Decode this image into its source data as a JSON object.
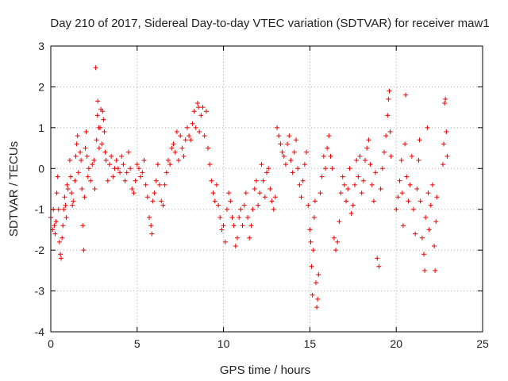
{
  "chart_data": {
    "type": "scatter",
    "title": "Day 210 of 2017, Sidereal Day-to-day VTEC variation (SDTVAR) for receiver maw1",
    "xlabel": "GPS time / hours",
    "ylabel": "SDTVAR / TECUs",
    "xlim": [
      0,
      25
    ],
    "ylim": [
      -4,
      3
    ],
    "xticks": [
      "0",
      "5",
      "10",
      "15",
      "20",
      "25"
    ],
    "yticks": [
      "-4",
      "-3",
      "-2",
      "-1",
      "0",
      "1",
      "2",
      "3"
    ],
    "xtick_values": [
      0,
      5,
      10,
      15,
      20,
      25
    ],
    "ytick_values": [
      -4,
      -3,
      -2,
      -1,
      0,
      1,
      2,
      3
    ],
    "grid": true,
    "marker": "+",
    "color": "#ee0000",
    "series": [
      {
        "name": "maw1",
        "points": [
          [
            0.0,
            -1.2
          ],
          [
            0.1,
            -1.5
          ],
          [
            0.15,
            -1.0
          ],
          [
            0.2,
            -1.4
          ],
          [
            0.25,
            -1.6
          ],
          [
            0.3,
            -1.3
          ],
          [
            0.35,
            -0.6
          ],
          [
            0.4,
            -0.2
          ],
          [
            0.45,
            -1.0
          ],
          [
            0.5,
            -1.8
          ],
          [
            0.55,
            -2.1
          ],
          [
            0.6,
            -2.2
          ],
          [
            0.65,
            -1.7
          ],
          [
            0.7,
            -1.4
          ],
          [
            0.75,
            -1.0
          ],
          [
            0.8,
            -0.7
          ],
          [
            0.85,
            -0.9
          ],
          [
            0.9,
            -1.2
          ],
          [
            0.95,
            -0.4
          ],
          [
            1.0,
            -0.5
          ],
          [
            1.1,
            0.2
          ],
          [
            1.15,
            -0.2
          ],
          [
            1.2,
            -0.6
          ],
          [
            1.25,
            -0.9
          ],
          [
            1.3,
            -0.8
          ],
          [
            1.4,
            -0.3
          ],
          [
            1.45,
            0.3
          ],
          [
            1.5,
            0.6
          ],
          [
            1.55,
            0.8
          ],
          [
            1.6,
            -0.1
          ],
          [
            1.7,
            0.4
          ],
          [
            1.75,
            0.2
          ],
          [
            1.8,
            -0.5
          ],
          [
            1.85,
            -1.4
          ],
          [
            1.9,
            -2.0
          ],
          [
            1.95,
            -0.7
          ],
          [
            2.0,
            0.5
          ],
          [
            2.05,
            0.9
          ],
          [
            2.1,
            0.3
          ],
          [
            2.15,
            -0.2
          ],
          [
            2.2,
            0.0
          ],
          [
            2.3,
            -0.3
          ],
          [
            2.4,
            0.1
          ],
          [
            2.5,
            0.2
          ],
          [
            2.55,
            -0.5
          ],
          [
            2.6,
            2.47
          ],
          [
            2.65,
            0.7
          ],
          [
            2.7,
            1.3
          ],
          [
            2.72,
            1.65
          ],
          [
            2.78,
            1.0
          ],
          [
            2.8,
            0.5
          ],
          [
            2.85,
            1.0
          ],
          [
            2.9,
            1.45
          ],
          [
            2.95,
            0.6
          ],
          [
            3.0,
            1.4
          ],
          [
            3.05,
            1.2
          ],
          [
            3.1,
            0.9
          ],
          [
            3.15,
            0.4
          ],
          [
            3.2,
            0.2
          ],
          [
            3.3,
            -0.3
          ],
          [
            3.4,
            0.1
          ],
          [
            3.5,
            0.3
          ],
          [
            3.6,
            -0.2
          ],
          [
            3.7,
            0.0
          ],
          [
            3.8,
            0.2
          ],
          [
            3.9,
            0.0
          ],
          [
            4.0,
            -0.1
          ],
          [
            4.1,
            0.3
          ],
          [
            4.2,
            0.1
          ],
          [
            4.3,
            -0.3
          ],
          [
            4.4,
            -0.1
          ],
          [
            4.5,
            0.4
          ],
          [
            4.6,
            0.0
          ],
          [
            4.7,
            -0.5
          ],
          [
            4.8,
            -0.6
          ],
          [
            4.9,
            -0.3
          ],
          [
            5.0,
            0.1
          ],
          [
            5.1,
            0.0
          ],
          [
            5.2,
            -0.2
          ],
          [
            5.3,
            -0.1
          ],
          [
            5.4,
            0.2
          ],
          [
            5.5,
            -0.4
          ],
          [
            5.6,
            -0.7
          ],
          [
            5.7,
            -1.2
          ],
          [
            5.8,
            -1.4
          ],
          [
            5.85,
            -1.6
          ],
          [
            5.9,
            -0.8
          ],
          [
            6.0,
            -0.6
          ],
          [
            6.1,
            -0.3
          ],
          [
            6.2,
            0.1
          ],
          [
            6.3,
            -0.4
          ],
          [
            6.4,
            -0.8
          ],
          [
            6.5,
            -0.9
          ],
          [
            6.6,
            -0.4
          ],
          [
            6.7,
            -0.1
          ],
          [
            6.8,
            0.2
          ],
          [
            6.9,
            0.1
          ],
          [
            7.0,
            0.5
          ],
          [
            7.1,
            0.6
          ],
          [
            7.2,
            0.4
          ],
          [
            7.3,
            0.9
          ],
          [
            7.4,
            0.2
          ],
          [
            7.5,
            0.8
          ],
          [
            7.6,
            0.5
          ],
          [
            7.7,
            0.3
          ],
          [
            7.8,
            0.7
          ],
          [
            7.9,
            1.0
          ],
          [
            8.0,
            0.8
          ],
          [
            8.1,
            0.7
          ],
          [
            8.2,
            1.1
          ],
          [
            8.3,
            1.4
          ],
          [
            8.4,
            1.0
          ],
          [
            8.5,
            1.6
          ],
          [
            8.55,
            1.5
          ],
          [
            8.6,
            0.9
          ],
          [
            8.7,
            1.3
          ],
          [
            8.8,
            1.5
          ],
          [
            8.9,
            0.8
          ],
          [
            9.0,
            1.4
          ],
          [
            9.1,
            0.5
          ],
          [
            9.2,
            0.1
          ],
          [
            9.3,
            -0.3
          ],
          [
            9.4,
            -0.6
          ],
          [
            9.5,
            -0.8
          ],
          [
            9.6,
            -0.4
          ],
          [
            9.7,
            -0.9
          ],
          [
            9.8,
            -1.2
          ],
          [
            9.9,
            -1.5
          ],
          [
            10.0,
            -1.4
          ],
          [
            10.1,
            -1.8
          ],
          [
            10.2,
            -1.0
          ],
          [
            10.3,
            -0.6
          ],
          [
            10.4,
            -0.8
          ],
          [
            10.5,
            -1.2
          ],
          [
            10.6,
            -1.4
          ],
          [
            10.7,
            -1.9
          ],
          [
            10.8,
            -1.7
          ],
          [
            10.9,
            -1.2
          ],
          [
            11.0,
            -1.0
          ],
          [
            11.1,
            -1.4
          ],
          [
            11.2,
            -0.9
          ],
          [
            11.3,
            -0.6
          ],
          [
            11.4,
            -1.2
          ],
          [
            11.5,
            -1.7
          ],
          [
            11.6,
            -1.4
          ],
          [
            11.7,
            -1.0
          ],
          [
            11.8,
            -0.5
          ],
          [
            11.9,
            -0.3
          ],
          [
            12.0,
            -0.9
          ],
          [
            12.1,
            -0.6
          ],
          [
            12.2,
            0.1
          ],
          [
            12.3,
            -0.3
          ],
          [
            12.4,
            -0.7
          ],
          [
            12.5,
            -0.1
          ],
          [
            12.6,
            0.0
          ],
          [
            12.7,
            -0.5
          ],
          [
            12.8,
            -0.8
          ],
          [
            12.9,
            -1.0
          ],
          [
            13.0,
            -0.7
          ],
          [
            13.1,
            1.0
          ],
          [
            13.2,
            0.8
          ],
          [
            13.3,
            0.6
          ],
          [
            13.4,
            0.4
          ],
          [
            13.5,
            0.3
          ],
          [
            13.6,
            0.1
          ],
          [
            13.7,
            0.6
          ],
          [
            13.8,
            0.8
          ],
          [
            13.9,
            0.2
          ],
          [
            14.0,
            -0.1
          ],
          [
            14.1,
            0.4
          ],
          [
            14.2,
            0.7
          ],
          [
            14.3,
            0.0
          ],
          [
            14.4,
            -0.4
          ],
          [
            14.5,
            -0.7
          ],
          [
            14.6,
            -0.3
          ],
          [
            14.7,
            0.1
          ],
          [
            14.8,
            0.4
          ],
          [
            14.9,
            -0.9
          ],
          [
            15.0,
            -1.5
          ],
          [
            15.05,
            -1.8
          ],
          [
            15.1,
            -2.4
          ],
          [
            15.15,
            -3.1
          ],
          [
            15.2,
            -2.0
          ],
          [
            15.25,
            -1.2
          ],
          [
            15.3,
            -0.8
          ],
          [
            15.35,
            -2.8
          ],
          [
            15.4,
            -3.4
          ],
          [
            15.45,
            -3.2
          ],
          [
            15.5,
            -2.6
          ],
          [
            15.6,
            -0.6
          ],
          [
            15.7,
            -0.2
          ],
          [
            15.8,
            0.3
          ],
          [
            15.9,
            0.0
          ],
          [
            16.0,
            0.5
          ],
          [
            16.1,
            0.8
          ],
          [
            16.2,
            0.3
          ],
          [
            16.3,
            0.0
          ],
          [
            16.4,
            -1.7
          ],
          [
            16.5,
            -2.0
          ],
          [
            16.6,
            -1.8
          ],
          [
            16.7,
            -1.3
          ],
          [
            16.8,
            -0.6
          ],
          [
            16.9,
            -0.2
          ],
          [
            17.0,
            -0.4
          ],
          [
            17.1,
            -0.8
          ],
          [
            17.2,
            -0.5
          ],
          [
            17.3,
            0.0
          ],
          [
            17.4,
            -1.1
          ],
          [
            17.5,
            -0.9
          ],
          [
            17.6,
            -0.4
          ],
          [
            17.7,
            0.2
          ],
          [
            17.8,
            -0.2
          ],
          [
            17.9,
            0.3
          ],
          [
            18.0,
            -0.6
          ],
          [
            18.1,
            -0.3
          ],
          [
            18.2,
            0.2
          ],
          [
            18.3,
            0.5
          ],
          [
            18.4,
            0.7
          ],
          [
            18.5,
            0.1
          ],
          [
            18.6,
            -0.4
          ],
          [
            18.7,
            -0.8
          ],
          [
            18.8,
            -0.1
          ],
          [
            18.9,
            -2.2
          ],
          [
            19.0,
            -2.4
          ],
          [
            19.1,
            -0.5
          ],
          [
            19.2,
            0.0
          ],
          [
            19.3,
            0.4
          ],
          [
            19.4,
            0.8
          ],
          [
            19.5,
            1.3
          ],
          [
            19.55,
            1.7
          ],
          [
            19.6,
            1.9
          ],
          [
            19.65,
            0.9
          ],
          [
            19.7,
            0.3
          ],
          [
            20.0,
            -1.0
          ],
          [
            20.1,
            -0.7
          ],
          [
            20.2,
            -0.3
          ],
          [
            20.3,
            0.2
          ],
          [
            20.35,
            -0.6
          ],
          [
            20.4,
            -1.4
          ],
          [
            20.5,
            0.6
          ],
          [
            20.55,
            1.8
          ],
          [
            20.6,
            -0.2
          ],
          [
            20.7,
            -0.8
          ],
          [
            20.8,
            -0.4
          ],
          [
            20.9,
            0.3
          ],
          [
            21.0,
            -1.0
          ],
          [
            21.1,
            -1.6
          ],
          [
            21.2,
            -0.5
          ],
          [
            21.3,
            0.2
          ],
          [
            21.35,
            0.7
          ],
          [
            21.4,
            -0.8
          ],
          [
            21.5,
            -1.7
          ],
          [
            21.6,
            -2.1
          ],
          [
            21.65,
            -2.5
          ],
          [
            21.7,
            -1.2
          ],
          [
            21.8,
            1.0
          ],
          [
            21.85,
            -0.6
          ],
          [
            21.9,
            -1.5
          ],
          [
            22.0,
            -0.9
          ],
          [
            22.1,
            -0.4
          ],
          [
            22.2,
            -1.9
          ],
          [
            22.25,
            -2.5
          ],
          [
            22.3,
            -1.3
          ],
          [
            22.35,
            -0.7
          ],
          [
            22.7,
            0.1
          ],
          [
            22.75,
            0.6
          ],
          [
            22.8,
            1.6
          ],
          [
            22.85,
            1.7
          ],
          [
            22.9,
            0.9
          ],
          [
            22.95,
            0.3
          ]
        ]
      }
    ]
  }
}
